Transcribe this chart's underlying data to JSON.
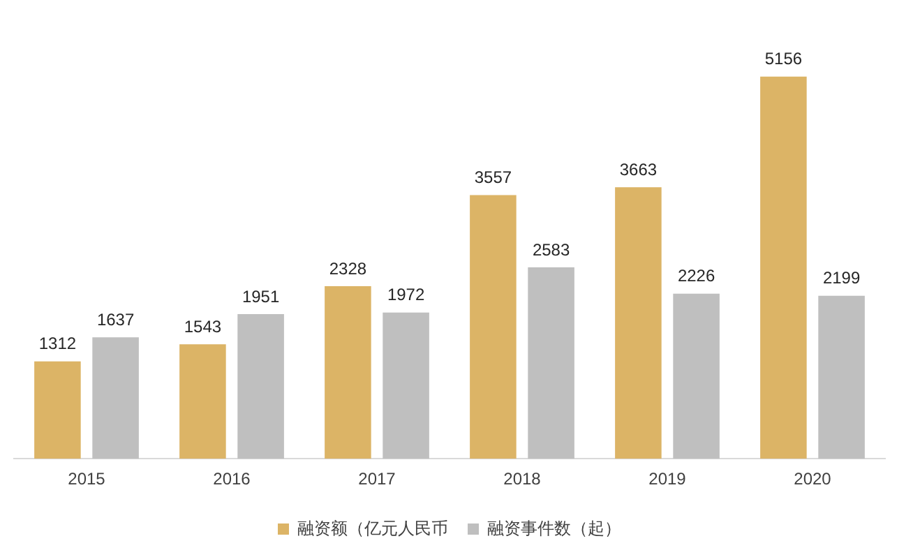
{
  "chart_data": {
    "type": "bar",
    "categories": [
      "2015",
      "2016",
      "2017",
      "2018",
      "2019",
      "2020"
    ],
    "series": [
      {
        "name": "融资额（亿元人民币",
        "color": "#dcb466",
        "values": [
          1312,
          1543,
          2328,
          3557,
          3663,
          5156
        ]
      },
      {
        "name": "融资事件数（起）",
        "color": "#bfbfbf",
        "values": [
          1637,
          1951,
          1972,
          2583,
          2226,
          2199
        ]
      }
    ],
    "tick_labels": "x",
    "data_labels": true,
    "grid": false,
    "legend": "bottom"
  }
}
